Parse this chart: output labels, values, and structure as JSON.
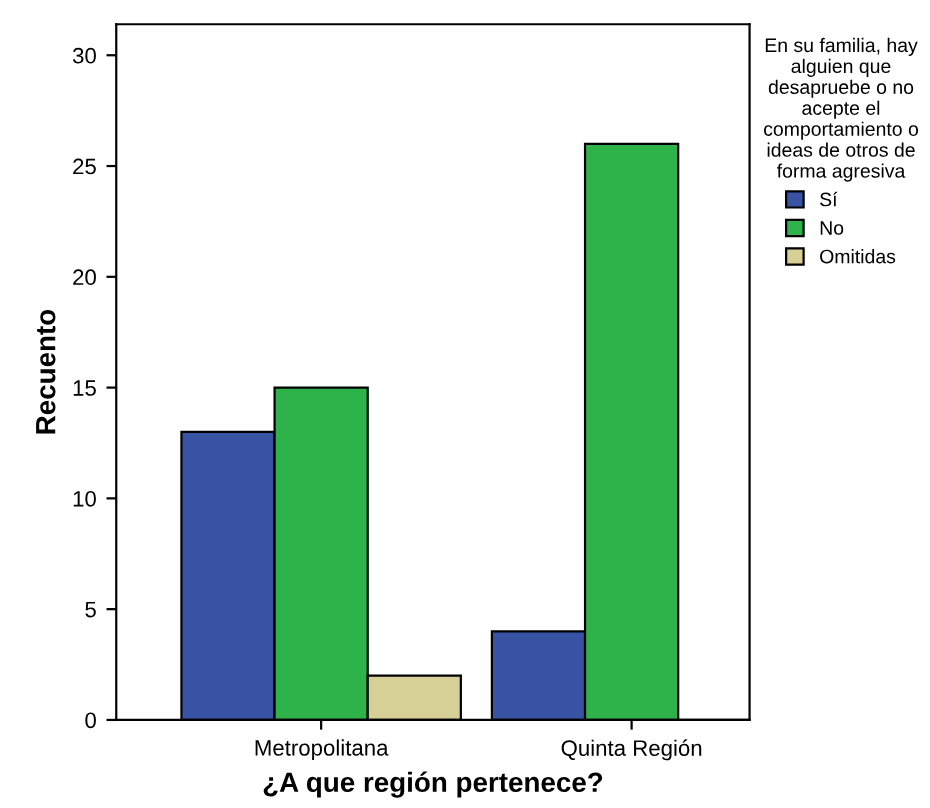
{
  "chart_data": {
    "type": "bar",
    "xlabel": "¿A que región pertenece?",
    "ylabel": "Recuento",
    "legend_title": "En su familia, hay\nalguien que\ndesapruebe o no\nacepte el\ncomportamiento o\nideas de otros de\nforma agresiva",
    "categories": [
      "Metropolitana",
      "Quinta Región"
    ],
    "series": [
      {
        "name": "Sí",
        "color": "#3953a4",
        "values": [
          13,
          4
        ]
      },
      {
        "name": "No",
        "color": "#2db34a",
        "values": [
          15,
          26
        ]
      },
      {
        "name": "Omitidas",
        "color": "#d6cf96",
        "values": [
          2,
          0
        ]
      }
    ],
    "ylim": [
      0,
      31.4
    ],
    "yticks": [
      0,
      5,
      10,
      15,
      20,
      25,
      30
    ],
    "grid": false,
    "legend": "right"
  }
}
